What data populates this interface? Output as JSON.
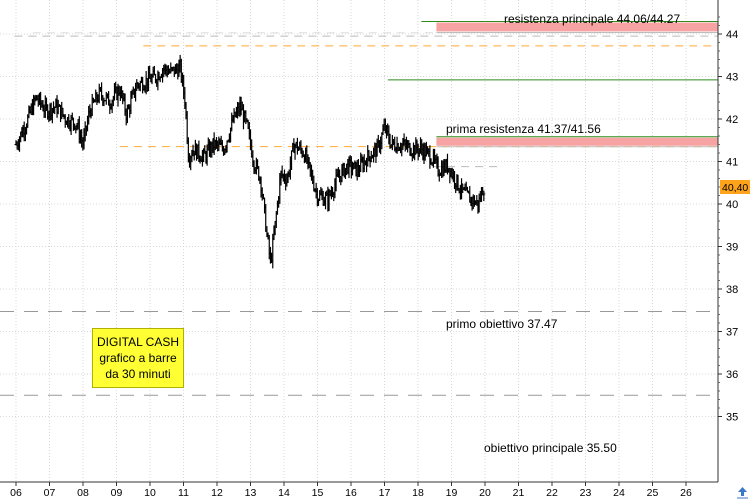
{
  "chart_data": {
    "type": "bar",
    "subtype": "ohlc-30min",
    "y_axis": {
      "side": "right",
      "ylim": [
        34.9,
        44.6
      ],
      "ticks": [
        35,
        36,
        37,
        38,
        39,
        40,
        41,
        42,
        43,
        44
      ]
    },
    "x_axis": {
      "day_labels": [
        "06",
        "07",
        "08",
        "09",
        "10",
        "11",
        "12",
        "13",
        "14",
        "15",
        "16",
        "17",
        "18",
        "19",
        "20",
        "21",
        "22",
        "23",
        "24",
        "25",
        "26"
      ]
    },
    "last_price": {
      "label": "40,40",
      "value": 40.4
    },
    "price_series": [
      {
        "day": 6.0,
        "price": 41.4
      },
      {
        "day": 6.3,
        "price": 41.9
      },
      {
        "day": 6.6,
        "price": 42.5
      },
      {
        "day": 6.9,
        "price": 42.2
      },
      {
        "day": 7.2,
        "price": 42.3
      },
      {
        "day": 7.5,
        "price": 42.0
      },
      {
        "day": 7.8,
        "price": 41.9
      },
      {
        "day": 8.0,
        "price": 41.4
      },
      {
        "day": 8.2,
        "price": 42.2
      },
      {
        "day": 8.5,
        "price": 42.6
      },
      {
        "day": 8.8,
        "price": 42.4
      },
      {
        "day": 9.1,
        "price": 42.7
      },
      {
        "day": 9.3,
        "price": 42.1
      },
      {
        "day": 9.6,
        "price": 42.8
      },
      {
        "day": 9.9,
        "price": 42.9
      },
      {
        "day": 10.2,
        "price": 43.0
      },
      {
        "day": 10.4,
        "price": 43.2
      },
      {
        "day": 10.6,
        "price": 43.1
      },
      {
        "day": 10.9,
        "price": 43.2
      },
      {
        "day": 11.05,
        "price": 42.4
      },
      {
        "day": 11.15,
        "price": 41.1
      },
      {
        "day": 11.3,
        "price": 41.3
      },
      {
        "day": 11.6,
        "price": 41.1
      },
      {
        "day": 11.9,
        "price": 41.4
      },
      {
        "day": 12.2,
        "price": 41.3
      },
      {
        "day": 12.5,
        "price": 42.0
      },
      {
        "day": 12.7,
        "price": 42.3
      },
      {
        "day": 12.9,
        "price": 41.8
      },
      {
        "day": 13.1,
        "price": 41.0
      },
      {
        "day": 13.3,
        "price": 40.6
      },
      {
        "day": 13.5,
        "price": 39.2
      },
      {
        "day": 13.6,
        "price": 38.6
      },
      {
        "day": 13.75,
        "price": 39.6
      },
      {
        "day": 13.9,
        "price": 40.7
      },
      {
        "day": 14.1,
        "price": 40.6
      },
      {
        "day": 14.3,
        "price": 41.4
      },
      {
        "day": 14.6,
        "price": 41.2
      },
      {
        "day": 14.8,
        "price": 40.7
      },
      {
        "day": 15.0,
        "price": 40.2
      },
      {
        "day": 15.3,
        "price": 40.1
      },
      {
        "day": 15.6,
        "price": 40.6
      },
      {
        "day": 15.9,
        "price": 40.9
      },
      {
        "day": 16.2,
        "price": 40.8
      },
      {
        "day": 16.5,
        "price": 41.1
      },
      {
        "day": 16.8,
        "price": 41.3
      },
      {
        "day": 17.0,
        "price": 41.8
      },
      {
        "day": 17.2,
        "price": 41.4
      },
      {
        "day": 17.5,
        "price": 41.4
      },
      {
        "day": 17.8,
        "price": 41.3
      },
      {
        "day": 18.1,
        "price": 41.3
      },
      {
        "day": 18.4,
        "price": 41.1
      },
      {
        "day": 18.6,
        "price": 40.8
      },
      {
        "day": 18.9,
        "price": 40.9
      },
      {
        "day": 19.1,
        "price": 40.6
      },
      {
        "day": 19.3,
        "price": 40.3
      },
      {
        "day": 19.6,
        "price": 40.1
      },
      {
        "day": 19.8,
        "price": 40.0
      },
      {
        "day": 19.95,
        "price": 40.4
      },
      {
        "day": 20.0,
        "price": 40.4
      }
    ],
    "levels": [
      {
        "name": "resistenza principale",
        "label": "resistenza principale 44.06/44.27",
        "low": 44.06,
        "high": 44.27,
        "zone_color": "#f7a3a3",
        "line_color": "#2e8b1a",
        "start_day": 18.1,
        "zone_start_day": 18.55
      },
      {
        "name": "prima resistenza",
        "label": "prima resistenza 41.37/41.56",
        "low": 41.37,
        "high": 41.56,
        "zone_color": "#f7a3a3",
        "line_color": "#2e8b1a",
        "start_day": 18.55,
        "zone_start_day": 18.55
      },
      {
        "name": "primo obiettivo",
        "label": "primo obiettivo 37.47",
        "value": 37.47,
        "line_color": "#999999",
        "dashed": true
      },
      {
        "name": "obiettivo principale",
        "label": "obiettivo principale 35.50",
        "value": 35.5,
        "line_color": "#999999",
        "dashed": true
      }
    ],
    "reference_lines": [
      {
        "value": 42.92,
        "color": "#2e8b1a",
        "start_day": 17.1
      },
      {
        "value": 43.72,
        "color": "#ffaa33",
        "dashed": true,
        "start_day": 9.8
      },
      {
        "value": 41.35,
        "color": "#ffaa33",
        "dashed": true,
        "start_day": 9.1
      },
      {
        "value": 43.95,
        "color": "#bbbbbb",
        "dashed": true,
        "start_day": 5.95
      },
      {
        "value": 44.03,
        "color": "#dddddd",
        "dashed": true,
        "start_day": 6.5
      },
      {
        "value": 40.88,
        "color": "#bbbbbb",
        "dashed": true,
        "start_day": 18.45,
        "end_day": 20.5
      }
    ],
    "grid": true,
    "legend": "none"
  },
  "note": {
    "line1": "DIGITAL CASH",
    "line2": "grafico a barre",
    "line3": "da 30 minuti"
  },
  "colors": {
    "background": "#ffffff",
    "grid": "#d8d8d8",
    "price_bars": "#000000",
    "axis_panel": "#ffffff",
    "last_price_tag": "#ffa31a",
    "note_box": "#ffff33"
  },
  "icons": {
    "corner": "scroll-up-arrow-icon"
  }
}
